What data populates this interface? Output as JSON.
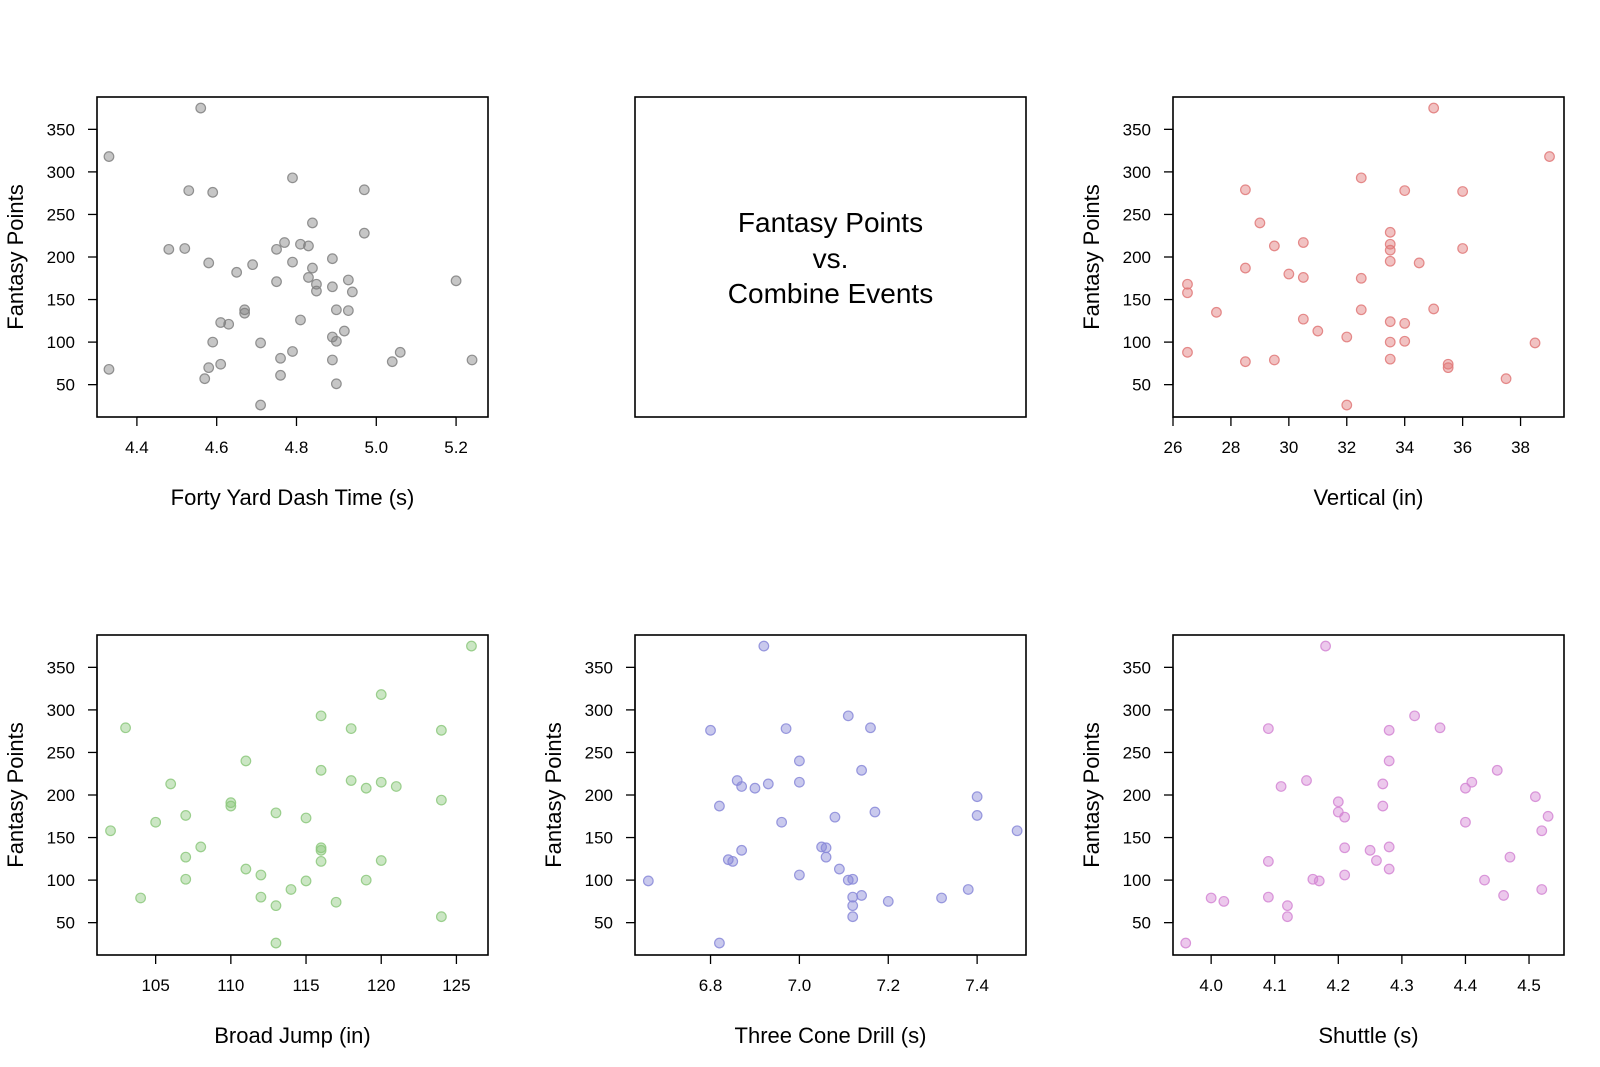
{
  "figure": {
    "title_lines": [
      "Fantasy Points",
      "vs.",
      "Combine Events"
    ]
  },
  "chart_data": [
    {
      "type": "scatter",
      "xlabel": "Forty Yard Dash Time (s)",
      "ylabel": "Fantasy Points",
      "xlim": [
        4.3,
        5.28
      ],
      "ylim": [
        12,
        388
      ],
      "xticks": [
        4.4,
        4.6,
        4.8,
        5.0,
        5.2
      ],
      "xtick_labels": [
        "4.4",
        "4.6",
        "4.8",
        "5.0",
        "5.2"
      ],
      "yticks": [
        50,
        100,
        150,
        200,
        250,
        300,
        350
      ],
      "color": "#808080",
      "points": [
        [
          4.33,
          318
        ],
        [
          4.33,
          68
        ],
        [
          4.48,
          209
        ],
        [
          4.52,
          210
        ],
        [
          4.53,
          278
        ],
        [
          4.56,
          375
        ],
        [
          4.57,
          57
        ],
        [
          4.58,
          193
        ],
        [
          4.58,
          70
        ],
        [
          4.59,
          276
        ],
        [
          4.59,
          100
        ],
        [
          4.61,
          123
        ],
        [
          4.61,
          74
        ],
        [
          4.63,
          121
        ],
        [
          4.65,
          182
        ],
        [
          4.67,
          138
        ],
        [
          4.67,
          134
        ],
        [
          4.69,
          191
        ],
        [
          4.71,
          99
        ],
        [
          4.71,
          26
        ],
        [
          4.75,
          171
        ],
        [
          4.75,
          209
        ],
        [
          4.76,
          81
        ],
        [
          4.76,
          61
        ],
        [
          4.77,
          217
        ],
        [
          4.79,
          293
        ],
        [
          4.79,
          194
        ],
        [
          4.79,
          89
        ],
        [
          4.81,
          215
        ],
        [
          4.81,
          126
        ],
        [
          4.83,
          176
        ],
        [
          4.83,
          213
        ],
        [
          4.84,
          187
        ],
        [
          4.84,
          240
        ],
        [
          4.85,
          168
        ],
        [
          4.85,
          160
        ],
        [
          4.89,
          198
        ],
        [
          4.89,
          106
        ],
        [
          4.89,
          79
        ],
        [
          4.89,
          165
        ],
        [
          4.9,
          138
        ],
        [
          4.9,
          101
        ],
        [
          4.9,
          51
        ],
        [
          4.92,
          113
        ],
        [
          4.93,
          173
        ],
        [
          4.93,
          137
        ],
        [
          4.94,
          159
        ],
        [
          4.97,
          279
        ],
        [
          4.97,
          228
        ],
        [
          5.04,
          77
        ],
        [
          5.06,
          88
        ],
        [
          5.2,
          172
        ],
        [
          5.24,
          79
        ]
      ]
    },
    {
      "type": "scatter",
      "xlabel": "Vertical (in)",
      "ylabel": "Fantasy Points",
      "xlim": [
        26,
        39.5
      ],
      "ylim": [
        12,
        388
      ],
      "xticks": [
        26,
        28,
        30,
        32,
        34,
        36,
        38
      ],
      "xtick_labels": [
        "26",
        "28",
        "30",
        "32",
        "34",
        "36",
        "38"
      ],
      "yticks": [
        50,
        100,
        150,
        200,
        250,
        300,
        350
      ],
      "color": "#e07878",
      "points": [
        [
          26.5,
          168
        ],
        [
          26.5,
          158
        ],
        [
          26.5,
          88
        ],
        [
          27.5,
          135
        ],
        [
          28.5,
          279
        ],
        [
          28.5,
          187
        ],
        [
          28.5,
          77
        ],
        [
          29,
          240
        ],
        [
          29.5,
          213
        ],
        [
          29.5,
          79
        ],
        [
          30,
          180
        ],
        [
          30.5,
          217
        ],
        [
          30.5,
          176
        ],
        [
          30.5,
          127
        ],
        [
          31,
          113
        ],
        [
          32,
          106
        ],
        [
          32,
          26
        ],
        [
          32.5,
          293
        ],
        [
          32.5,
          175
        ],
        [
          32.5,
          138
        ],
        [
          33.5,
          229
        ],
        [
          33.5,
          215
        ],
        [
          33.5,
          208
        ],
        [
          33.5,
          195
        ],
        [
          33.5,
          124
        ],
        [
          33.5,
          100
        ],
        [
          33.5,
          80
        ],
        [
          34,
          278
        ],
        [
          34,
          122
        ],
        [
          34,
          101
        ],
        [
          34.5,
          193
        ],
        [
          35,
          375
        ],
        [
          35,
          139
        ],
        [
          35.5,
          74
        ],
        [
          35.5,
          70
        ],
        [
          36,
          277
        ],
        [
          36,
          210
        ],
        [
          37.5,
          57
        ],
        [
          38.5,
          99
        ],
        [
          39,
          318
        ]
      ]
    },
    {
      "type": "scatter",
      "xlabel": "Broad Jump (in)",
      "ylabel": "Fantasy Points",
      "xlim": [
        101.1,
        127.1
      ],
      "ylim": [
        12,
        388
      ],
      "xticks": [
        105,
        110,
        115,
        120,
        125
      ],
      "xtick_labels": [
        "105",
        "110",
        "115",
        "120",
        "125"
      ],
      "yticks": [
        50,
        100,
        150,
        200,
        250,
        300,
        350
      ],
      "color": "#8cc87c",
      "points": [
        [
          102,
          158
        ],
        [
          103,
          279
        ],
        [
          104,
          79
        ],
        [
          105,
          168
        ],
        [
          106,
          213
        ],
        [
          107,
          176
        ],
        [
          107,
          127
        ],
        [
          107,
          101
        ],
        [
          108,
          139
        ],
        [
          110,
          191
        ],
        [
          110,
          187
        ],
        [
          111,
          240
        ],
        [
          111,
          113
        ],
        [
          112,
          106
        ],
        [
          112,
          80
        ],
        [
          113,
          179
        ],
        [
          113,
          70
        ],
        [
          113,
          26
        ],
        [
          114,
          89
        ],
        [
          115,
          173
        ],
        [
          115,
          99
        ],
        [
          116,
          293
        ],
        [
          116,
          229
        ],
        [
          116,
          138
        ],
        [
          116,
          135
        ],
        [
          116,
          122
        ],
        [
          117,
          74
        ],
        [
          118,
          278
        ],
        [
          118,
          217
        ],
        [
          119,
          208
        ],
        [
          119,
          100
        ],
        [
          120,
          318
        ],
        [
          120,
          215
        ],
        [
          120,
          123
        ],
        [
          121,
          210
        ],
        [
          124,
          276
        ],
        [
          124,
          194
        ],
        [
          124,
          57
        ],
        [
          126,
          375
        ]
      ]
    },
    {
      "type": "scatter",
      "xlabel": "Three Cone Drill (s)",
      "ylabel": "Fantasy Points",
      "xlim": [
        6.63,
        7.51
      ],
      "ylim": [
        12,
        388
      ],
      "xticks": [
        6.8,
        7.0,
        7.2,
        7.4
      ],
      "xtick_labels": [
        "6.8",
        "7.0",
        "7.2",
        "7.4"
      ],
      "yticks": [
        50,
        100,
        150,
        200,
        250,
        300,
        350
      ],
      "color": "#8888d8",
      "points": [
        [
          6.66,
          99
        ],
        [
          6.8,
          276
        ],
        [
          6.82,
          187
        ],
        [
          6.82,
          26
        ],
        [
          6.84,
          124
        ],
        [
          6.85,
          122
        ],
        [
          6.86,
          217
        ],
        [
          6.87,
          210
        ],
        [
          6.87,
          135
        ],
        [
          6.9,
          208
        ],
        [
          6.92,
          375
        ],
        [
          6.93,
          213
        ],
        [
          6.96,
          168
        ],
        [
          6.97,
          278
        ],
        [
          7.0,
          240
        ],
        [
          7.0,
          215
        ],
        [
          7.0,
          106
        ],
        [
          7.05,
          139
        ],
        [
          7.06,
          138
        ],
        [
          7.06,
          127
        ],
        [
          7.08,
          174
        ],
        [
          7.09,
          113
        ],
        [
          7.11,
          293
        ],
        [
          7.11,
          100
        ],
        [
          7.12,
          101
        ],
        [
          7.12,
          80
        ],
        [
          7.12,
          70
        ],
        [
          7.12,
          57
        ],
        [
          7.14,
          229
        ],
        [
          7.14,
          82
        ],
        [
          7.16,
          279
        ],
        [
          7.17,
          180
        ],
        [
          7.2,
          75
        ],
        [
          7.32,
          79
        ],
        [
          7.38,
          89
        ],
        [
          7.4,
          198
        ],
        [
          7.4,
          176
        ],
        [
          7.49,
          158
        ]
      ]
    },
    {
      "type": "scatter",
      "xlabel": "Shuttle (s)",
      "ylabel": "Fantasy Points",
      "xlim": [
        3.94,
        4.555
      ],
      "ylim": [
        12,
        388
      ],
      "xticks": [
        4.0,
        4.1,
        4.2,
        4.3,
        4.4,
        4.5
      ],
      "xtick_labels": [
        "4.0",
        "4.1",
        "4.2",
        "4.3",
        "4.4",
        "4.5"
      ],
      "yticks": [
        50,
        100,
        150,
        200,
        250,
        300,
        350
      ],
      "color": "#d486d4",
      "points": [
        [
          3.96,
          26
        ],
        [
          4.0,
          79
        ],
        [
          4.02,
          75
        ],
        [
          4.09,
          278
        ],
        [
          4.09,
          122
        ],
        [
          4.09,
          80
        ],
        [
          4.11,
          210
        ],
        [
          4.12,
          70
        ],
        [
          4.12,
          57
        ],
        [
          4.15,
          217
        ],
        [
          4.16,
          101
        ],
        [
          4.17,
          99
        ],
        [
          4.18,
          375
        ],
        [
          4.2,
          192
        ],
        [
          4.2,
          180
        ],
        [
          4.21,
          174
        ],
        [
          4.21,
          138
        ],
        [
          4.21,
          106
        ],
        [
          4.25,
          135
        ],
        [
          4.26,
          123
        ],
        [
          4.27,
          213
        ],
        [
          4.27,
          187
        ],
        [
          4.28,
          276
        ],
        [
          4.28,
          240
        ],
        [
          4.28,
          139
        ],
        [
          4.28,
          113
        ],
        [
          4.32,
          293
        ],
        [
          4.36,
          279
        ],
        [
          4.4,
          208
        ],
        [
          4.4,
          168
        ],
        [
          4.41,
          215
        ],
        [
          4.43,
          100
        ],
        [
          4.45,
          229
        ],
        [
          4.46,
          82
        ],
        [
          4.47,
          127
        ],
        [
          4.51,
          198
        ],
        [
          4.52,
          158
        ],
        [
          4.52,
          89
        ],
        [
          4.53,
          175
        ]
      ]
    }
  ]
}
